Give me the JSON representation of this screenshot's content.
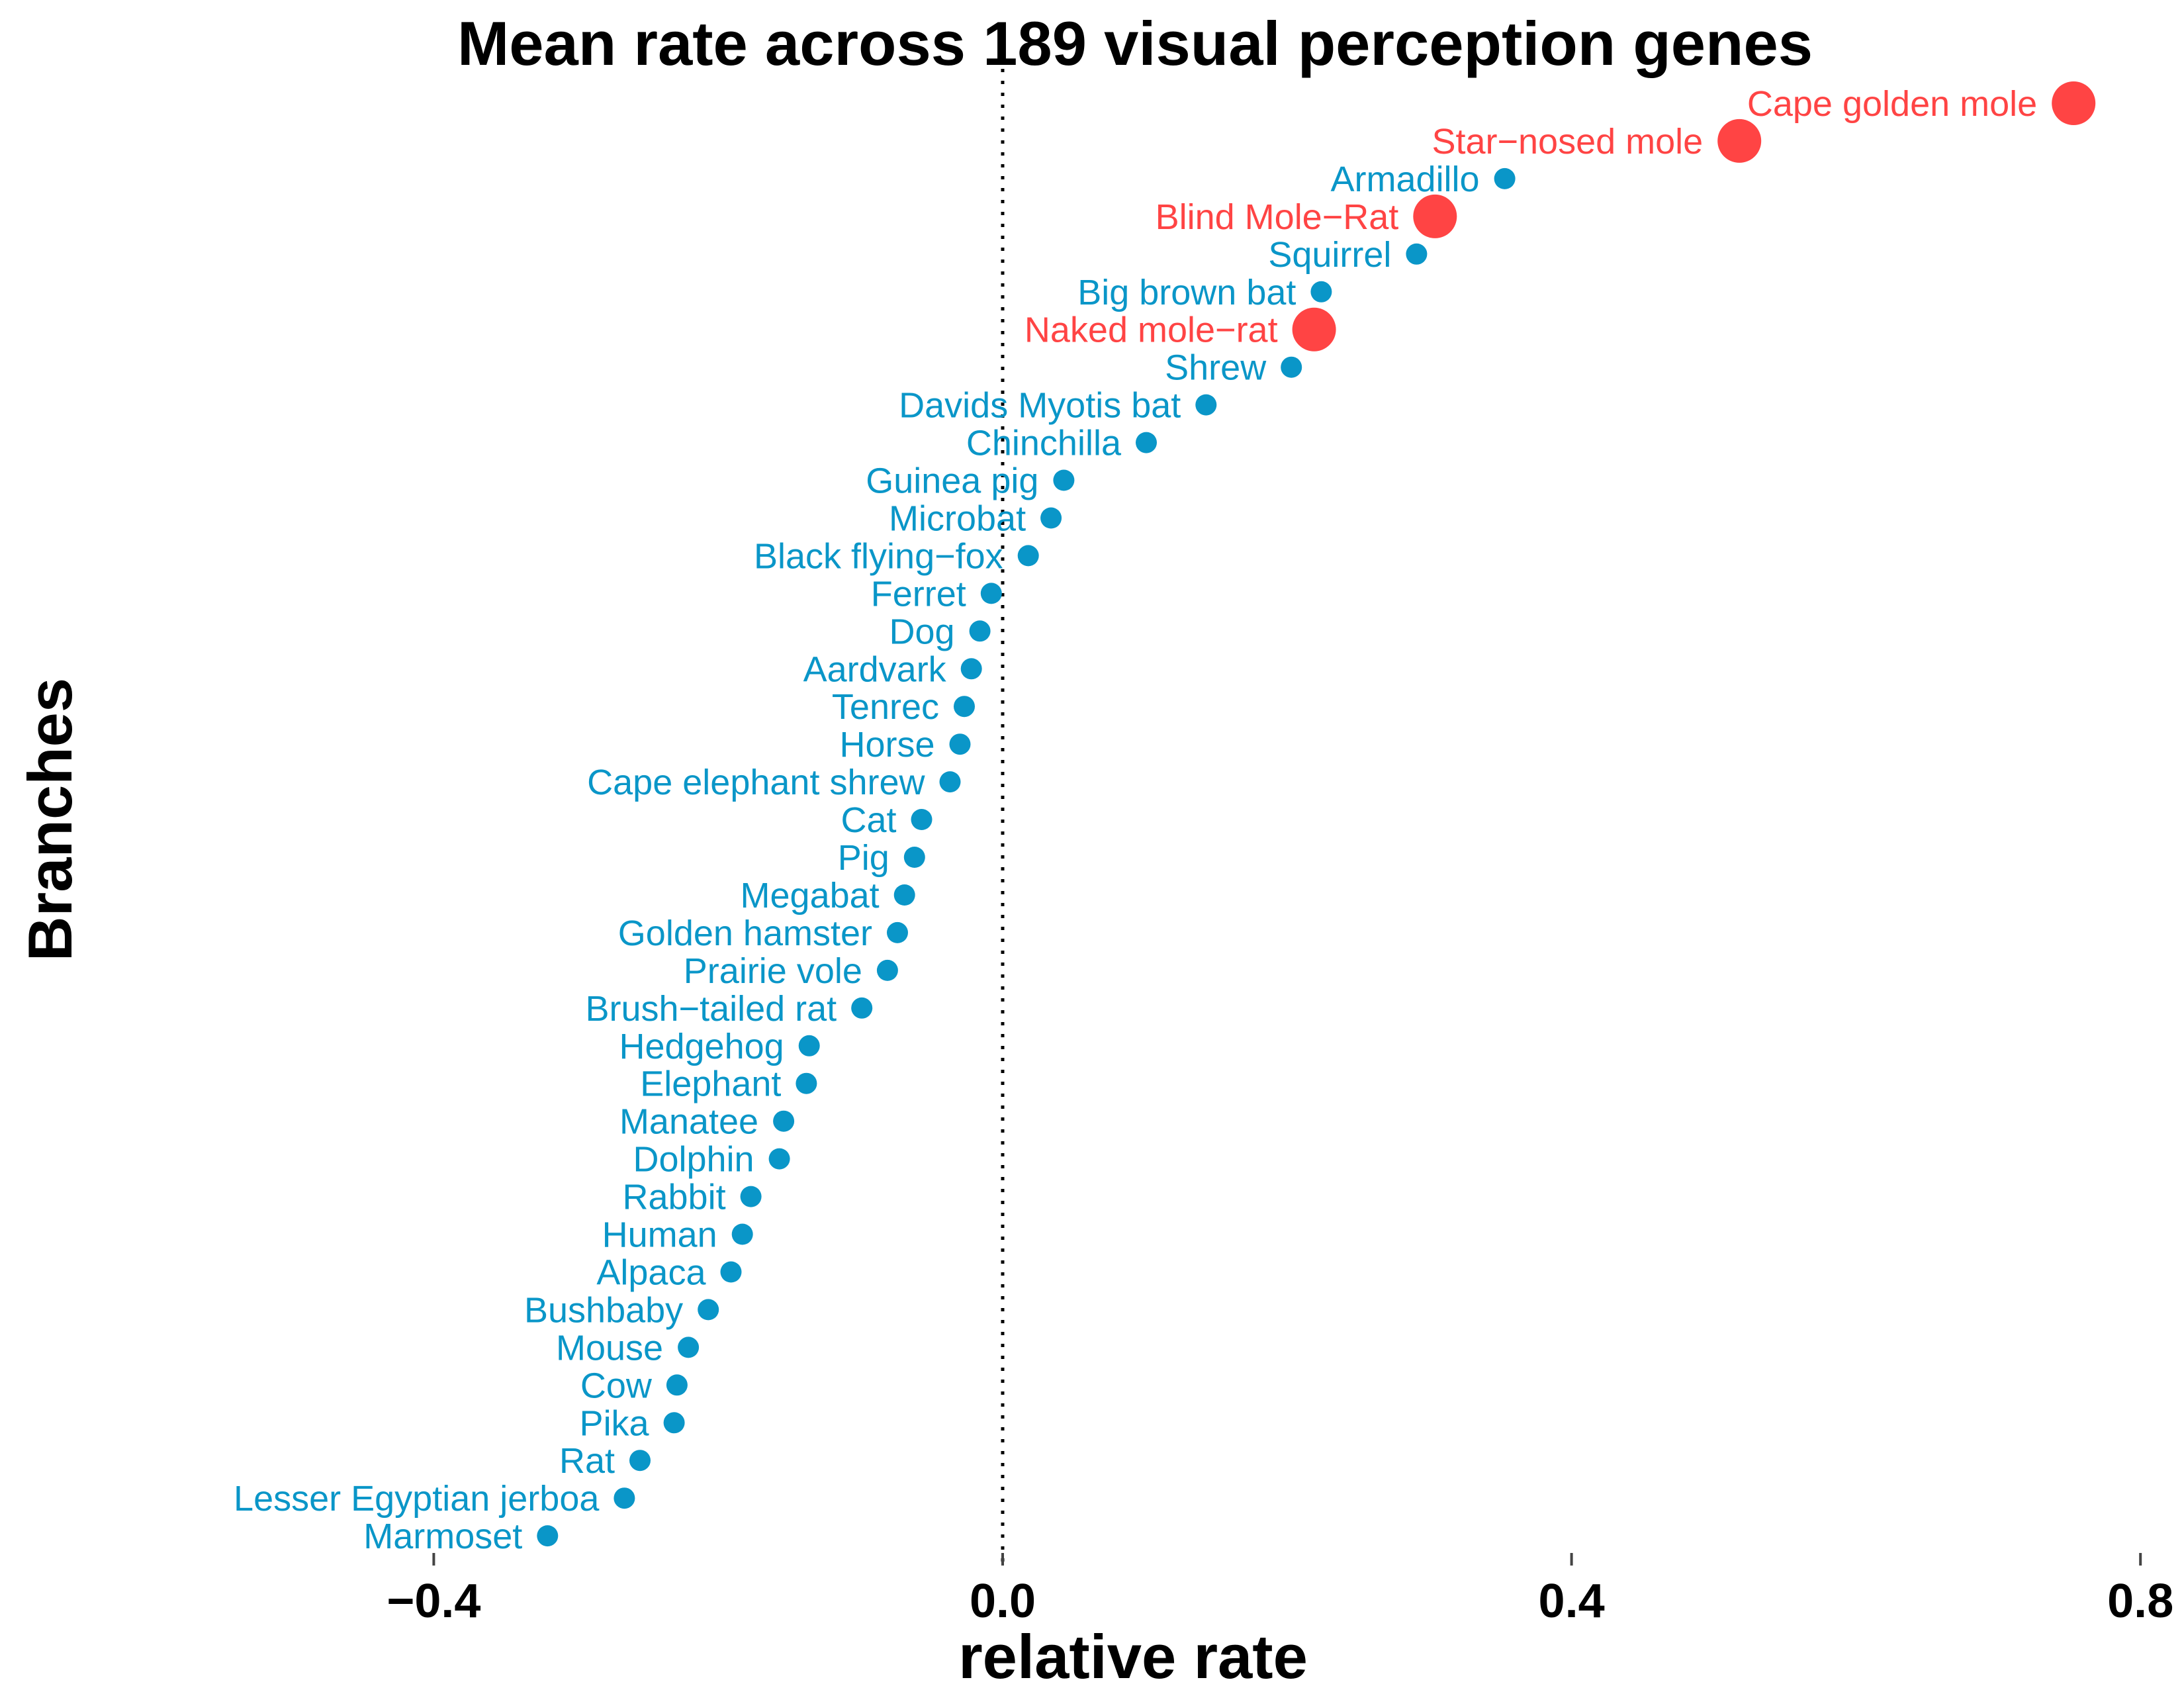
{
  "chart_data": {
    "type": "scatter",
    "subtype": "dot-plot",
    "title": "Mean rate across 189 visual perception genes",
    "xlabel": "relative rate",
    "ylabel": "Branches",
    "xlim": [
      -0.4,
      0.8
    ],
    "xticks": [
      -0.4,
      0.0,
      0.4,
      0.8
    ],
    "xtick_labels": [
      "−0.4",
      "0.0",
      "0.4",
      "0.8"
    ],
    "reference_line": {
      "x": 0.0,
      "style": "dotted"
    },
    "grid": false,
    "legend": null,
    "colors": {
      "highlight": "#FF4444",
      "default": "#0A96C8"
    },
    "series": [
      {
        "name": "Cape golden mole",
        "value": 0.753,
        "highlight": true
      },
      {
        "name": "Star−nosed mole",
        "value": 0.518,
        "highlight": true
      },
      {
        "name": "Armadillo",
        "value": 0.353,
        "highlight": false
      },
      {
        "name": "Blind Mole−Rat",
        "value": 0.304,
        "highlight": true
      },
      {
        "name": "Squirrel",
        "value": 0.291,
        "highlight": false
      },
      {
        "name": "Big brown bat",
        "value": 0.224,
        "highlight": false
      },
      {
        "name": "Naked mole−rat",
        "value": 0.219,
        "highlight": true
      },
      {
        "name": "Shrew",
        "value": 0.203,
        "highlight": false
      },
      {
        "name": "Davids Myotis bat",
        "value": 0.143,
        "highlight": false
      },
      {
        "name": "Chinchilla",
        "value": 0.101,
        "highlight": false
      },
      {
        "name": "Guinea pig",
        "value": 0.043,
        "highlight": false
      },
      {
        "name": "Microbat",
        "value": 0.034,
        "highlight": false
      },
      {
        "name": "Black flying−fox",
        "value": 0.018,
        "highlight": false
      },
      {
        "name": "Ferret",
        "value": -0.008,
        "highlight": false
      },
      {
        "name": "Dog",
        "value": -0.016,
        "highlight": false
      },
      {
        "name": "Aardvark",
        "value": -0.022,
        "highlight": false
      },
      {
        "name": "Tenrec",
        "value": -0.027,
        "highlight": false
      },
      {
        "name": "Horse",
        "value": -0.03,
        "highlight": false
      },
      {
        "name": "Cape elephant shrew",
        "value": -0.037,
        "highlight": false
      },
      {
        "name": "Cat",
        "value": -0.057,
        "highlight": false
      },
      {
        "name": "Pig",
        "value": -0.062,
        "highlight": false
      },
      {
        "name": "Megabat",
        "value": -0.069,
        "highlight": false
      },
      {
        "name": "Golden hamster",
        "value": -0.074,
        "highlight": false
      },
      {
        "name": "Prairie vole",
        "value": -0.081,
        "highlight": false
      },
      {
        "name": "Brush−tailed rat",
        "value": -0.099,
        "highlight": false
      },
      {
        "name": "Hedgehog",
        "value": -0.136,
        "highlight": false
      },
      {
        "name": "Elephant",
        "value": -0.138,
        "highlight": false
      },
      {
        "name": "Manatee",
        "value": -0.154,
        "highlight": false
      },
      {
        "name": "Dolphin",
        "value": -0.157,
        "highlight": false
      },
      {
        "name": "Rabbit",
        "value": -0.177,
        "highlight": false
      },
      {
        "name": "Human",
        "value": -0.183,
        "highlight": false
      },
      {
        "name": "Alpaca",
        "value": -0.191,
        "highlight": false
      },
      {
        "name": "Bushbaby",
        "value": -0.207,
        "highlight": false
      },
      {
        "name": "Mouse",
        "value": -0.221,
        "highlight": false
      },
      {
        "name": "Cow",
        "value": -0.229,
        "highlight": false
      },
      {
        "name": "Pika",
        "value": -0.231,
        "highlight": false
      },
      {
        "name": "Rat",
        "value": -0.255,
        "highlight": false
      },
      {
        "name": "Lesser Egyptian jerboa",
        "value": -0.266,
        "highlight": false
      },
      {
        "name": "Marmoset",
        "value": -0.32,
        "highlight": false
      }
    ]
  }
}
